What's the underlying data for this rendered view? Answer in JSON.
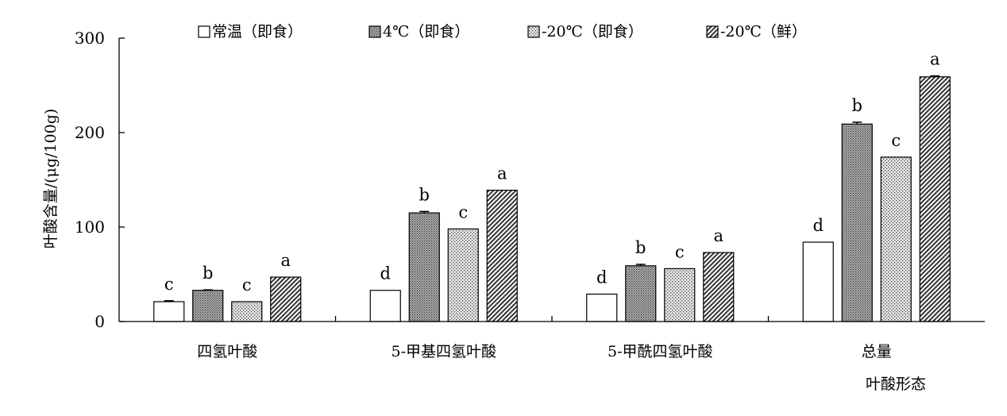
{
  "chart_data": {
    "type": "bar",
    "title": "",
    "xlabel": "叶酸形态",
    "ylabel": "叶酸含量/(μg/100g)",
    "ylim": [
      0,
      300
    ],
    "yticks": [
      0,
      100,
      200,
      300
    ],
    "grid": false,
    "legend_position": "top",
    "categories": [
      "四氢叶酸",
      "5-甲基四氢叶酸",
      "5-甲酰四氢叶酸",
      "总量"
    ],
    "series": [
      {
        "name": "常温（即食）",
        "pattern": "white",
        "values": [
          21,
          33,
          29,
          84
        ],
        "errors": [
          1,
          0,
          0,
          0
        ],
        "letters": [
          "c",
          "d",
          "d",
          "d"
        ]
      },
      {
        "name": "4℃（即食）",
        "pattern": "dense-dots",
        "values": [
          33,
          115,
          59,
          209
        ],
        "errors": [
          0.5,
          1.5,
          1.5,
          2
        ],
        "letters": [
          "b",
          "b",
          "b",
          "b"
        ]
      },
      {
        "name": "-20℃（即食）",
        "pattern": "sparse-dots",
        "values": [
          21,
          98,
          56,
          174
        ],
        "errors": [
          0,
          0,
          0,
          0
        ],
        "letters": [
          "c",
          "c",
          "c",
          "c"
        ]
      },
      {
        "name": "-20℃（鲜）",
        "pattern": "hatch",
        "values": [
          47,
          139,
          73,
          259
        ],
        "errors": [
          0,
          0,
          0,
          1
        ],
        "letters": [
          "a",
          "a",
          "a",
          "a"
        ]
      }
    ]
  }
}
